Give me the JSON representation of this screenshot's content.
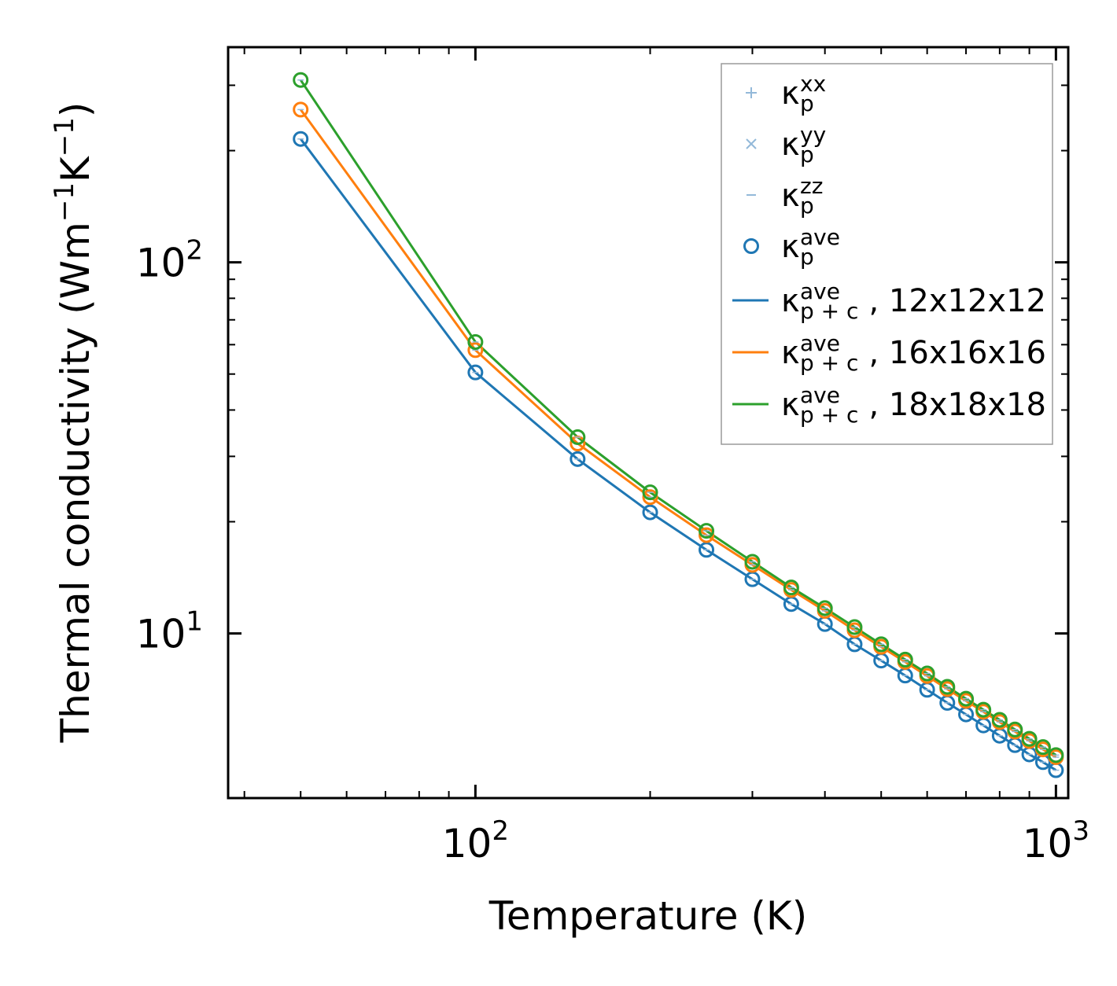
{
  "chart_data": {
    "type": "line",
    "title": "",
    "xlabel": "Temperature (K)",
    "ylabel_main": "Thermal conductivity (Wm",
    "ylabel_exp1": "−1",
    "ylabel_k": "K",
    "ylabel_exp2": "−1",
    "ylabel_close": ")",
    "xscale": "log",
    "yscale": "log",
    "xlim": [
      37.5,
      1050
    ],
    "ylim": [
      3.6,
      380
    ],
    "x_tick_labels": [
      {
        "value": 100,
        "base": "10",
        "exp": "2"
      },
      {
        "value": 1000,
        "base": "10",
        "exp": "3"
      }
    ],
    "y_tick_labels": [
      {
        "value": 10,
        "base": "10",
        "exp": "1"
      },
      {
        "value": 100,
        "base": "10",
        "exp": "2"
      }
    ],
    "x": [
      50,
      100,
      150,
      200,
      250,
      300,
      350,
      400,
      450,
      500,
      550,
      600,
      650,
      700,
      750,
      800,
      850,
      900,
      950,
      1000
    ],
    "series": [
      {
        "name": "12x12x12",
        "color": "#1f77b4",
        "values": [
          215,
          50.5,
          29.5,
          21.2,
          16.8,
          14.0,
          12.0,
          10.6,
          9.35,
          8.45,
          7.7,
          7.05,
          6.5,
          6.05,
          5.65,
          5.3,
          5.0,
          4.72,
          4.5,
          4.28
        ]
      },
      {
        "name": "16x16x16",
        "color": "#ff7f0e",
        "values": [
          258,
          58.0,
          32.5,
          23.3,
          18.4,
          15.3,
          13.1,
          11.5,
          10.2,
          9.2,
          8.38,
          7.68,
          7.08,
          6.58,
          6.15,
          5.77,
          5.44,
          5.13,
          4.87,
          4.64
        ]
      },
      {
        "name": "18x18x18",
        "color": "#2ca02c",
        "values": [
          310,
          61.0,
          33.8,
          24.0,
          18.9,
          15.6,
          13.3,
          11.7,
          10.4,
          9.35,
          8.5,
          7.8,
          7.18,
          6.67,
          6.23,
          5.85,
          5.51,
          5.2,
          4.94,
          4.7
        ]
      }
    ],
    "grid": false,
    "legend_position": "top-right",
    "legend": [
      {
        "kind": "plus",
        "color": "#93b9d9",
        "sym": "κ",
        "sub": "p",
        "sup": "xx",
        "suffix": ""
      },
      {
        "kind": "x",
        "color": "#93b9d9",
        "sym": "κ",
        "sub": "p",
        "sup": "yy",
        "suffix": ""
      },
      {
        "kind": "dash",
        "color": "#93b9d9",
        "sym": "κ",
        "sub": "p",
        "sup": "zz",
        "suffix": ""
      },
      {
        "kind": "circle",
        "color": "#1f77b4",
        "sym": "κ",
        "sub": "p",
        "sup": "ave",
        "suffix": ""
      },
      {
        "kind": "line",
        "color": "#1f77b4",
        "sym": "κ",
        "sub": "p + c",
        "sup": "ave",
        "suffix": ", 12x12x12"
      },
      {
        "kind": "line",
        "color": "#ff7f0e",
        "sym": "κ",
        "sub": "p + c",
        "sup": "ave",
        "suffix": ", 16x16x16"
      },
      {
        "kind": "line",
        "color": "#2ca02c",
        "sym": "κ",
        "sub": "p + c",
        "sup": "ave",
        "suffix": ", 18x18x18"
      }
    ]
  }
}
